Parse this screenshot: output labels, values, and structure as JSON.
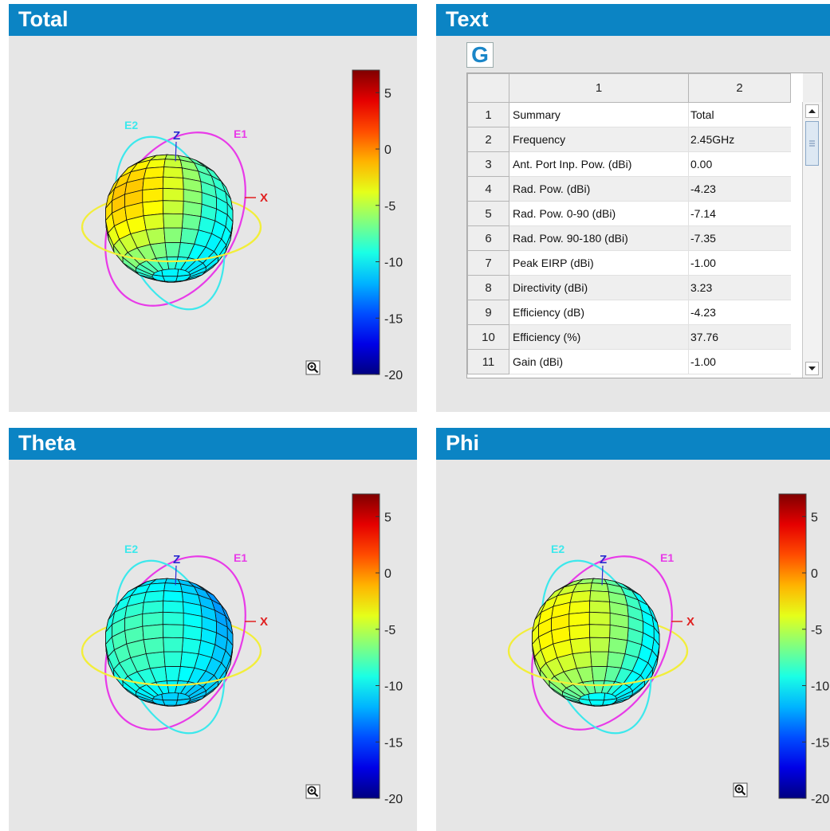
{
  "panels": {
    "total": {
      "title": "Total"
    },
    "text": {
      "title": "Text"
    },
    "theta": {
      "title": "Theta"
    },
    "phi": {
      "title": "Phi"
    }
  },
  "axis_labels": {
    "z": "Z",
    "x": "X",
    "e1": "E1",
    "e2": "E2"
  },
  "colorbar": {
    "ticks": [
      "5",
      "0",
      "-5",
      "-10",
      "-15",
      "-20"
    ],
    "colormap": "jet"
  },
  "grid_button": {
    "label": "G"
  },
  "table": {
    "columns": [
      "1",
      "2"
    ],
    "rows": [
      {
        "index": "1",
        "name": "Summary",
        "value": "Total"
      },
      {
        "index": "2",
        "name": "Frequency",
        "value": "2.45GHz"
      },
      {
        "index": "3",
        "name": "Ant. Port Inp. Pow. (dBi)",
        "value": "0.00"
      },
      {
        "index": "4",
        "name": "Rad. Pow. (dBi)",
        "value": "-4.23"
      },
      {
        "index": "5",
        "name": "Rad. Pow. 0-90 (dBi)",
        "value": "-7.14"
      },
      {
        "index": "6",
        "name": "Rad. Pow. 90-180 (dBi)",
        "value": "-7.35"
      },
      {
        "index": "7",
        "name": "Peak EIRP (dBi)",
        "value": "-1.00"
      },
      {
        "index": "8",
        "name": "Directivity (dBi)",
        "value": "3.23"
      },
      {
        "index": "9",
        "name": "Efficiency (dB)",
        "value": "-4.23"
      },
      {
        "index": "10",
        "name": "Efficiency (%)",
        "value": "37.76"
      },
      {
        "index": "11",
        "name": "Gain (dBi)",
        "value": "-1.00"
      }
    ]
  },
  "icons": {
    "zoom": "zoom-in-icon",
    "scroll_up": "scroll-up-icon",
    "scroll_down": "scroll-down-icon"
  },
  "colors": {
    "header": "#0b84c4",
    "panel_bg": "#e6e6e6",
    "e1": "#e83ae8",
    "e2": "#3ce8ec",
    "equator": "#f2ee3a",
    "x_axis": "#e02020",
    "z_axis": "#2a2ad0"
  }
}
